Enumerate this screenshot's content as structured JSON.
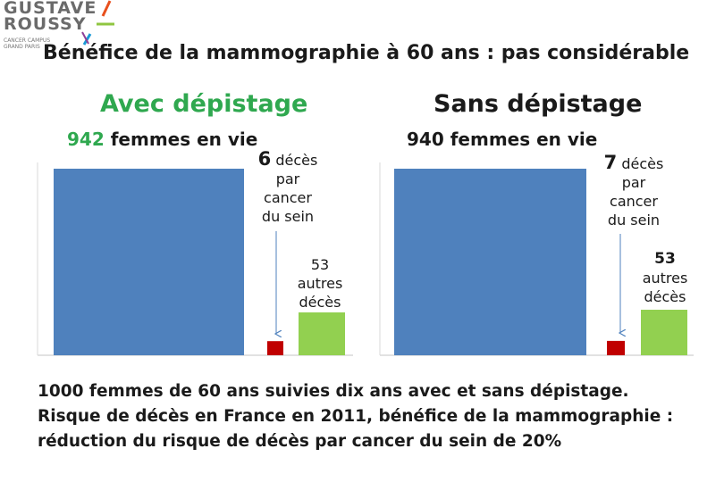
{
  "logo": {
    "line1": "GUSTAVE",
    "line2": "ROUSSY",
    "line3": "CANCER CAMPUS",
    "line4": "GRAND PARIS",
    "accent_colors": [
      "#e8501d",
      "#8fc640",
      "#1a9ad6",
      "#8e3f97"
    ]
  },
  "title": "Bénéfice de la mammographie à 60 ans : pas considérable",
  "chart_data": [
    {
      "type": "bar",
      "title": "Avec dépistage",
      "categories": [
        "femmes en vie",
        "décès par cancer du sein",
        "autres décès"
      ],
      "values": [
        942,
        6,
        53
      ],
      "colors": [
        "#4f81bd",
        "#c00000",
        "#92d050"
      ],
      "labels": {
        "alive_number": "942",
        "alive_text": " femmes en vie",
        "cancer_number": "6",
        "cancer_line1": " décès",
        "cancer_line2": "par",
        "cancer_line3": "cancer",
        "cancer_line4": "du sein",
        "other_line1": "53",
        "other_line2": "autres",
        "other_line3": "décès"
      }
    },
    {
      "type": "bar",
      "title": "Sans dépistage",
      "categories": [
        "femmes en vie",
        "décès par cancer du sein",
        "autres décès"
      ],
      "values": [
        940,
        7,
        53
      ],
      "colors": [
        "#4f81bd",
        "#c00000",
        "#92d050"
      ],
      "labels": {
        "alive_text": "940 femmes en vie",
        "cancer_number": "7",
        "cancer_line1": " décès",
        "cancer_line2": "par",
        "cancer_line3": "cancer",
        "cancer_line4": "du sein",
        "other_line1": "53",
        "other_line2": "autres",
        "other_line3": "décès"
      }
    }
  ],
  "footer": {
    "line1": "1000 femmes de 60 ans suivies dix ans avec et sans dépistage.",
    "line2": "Risque de décès en France en 2011, bénéfice de la mammographie :",
    "line3": "réduction du risque de décès par cancer du sein de 20%"
  },
  "colors": {
    "accent_green": "#2fa84f",
    "arrow": "#4f81bd",
    "axis": "#d9d9d9"
  }
}
